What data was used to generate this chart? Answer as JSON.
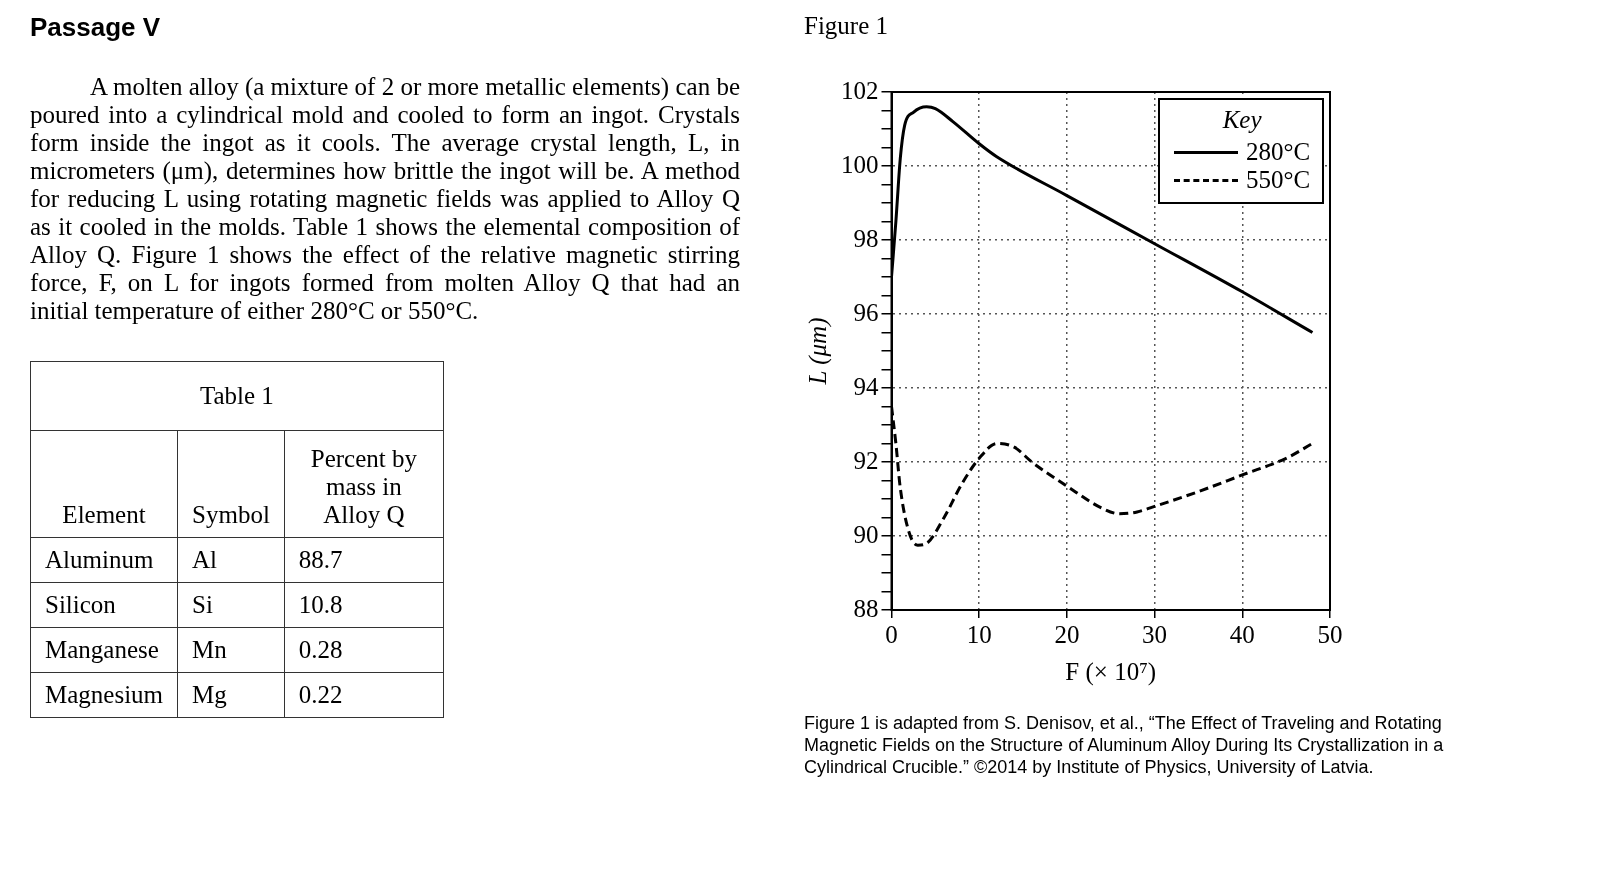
{
  "chart_data": [
    {
      "type": "other",
      "title": "Passage V",
      "annotations": [
        "A molten alloy (a mixture of 2 or more metallic elements) can be poured into a cylindrical mold and cooled to form an ingot. Crystals form inside the ingot as it cools. The average crystal length, L, in micrometers (μm), determines how brittle the ingot will be. A method for reducing L using rotating magnetic fields was applied to Alloy Q as it cooled in the molds. Table 1 shows the elemental composition of Alloy Q. Figure 1 shows the effect of the relative magnetic stirring force, F, on L for ingots formed from molten Alloy Q that had an initial temperature of either 280°C or 550°C.",
        "Table 1",
        "Element",
        "Symbol",
        "Percent by mass in Alloy Q",
        "Aluminum",
        "Al",
        "88.7",
        "Silicon",
        "Si",
        "10.8",
        "Manganese",
        "Mn",
        "0.28",
        "Magnesium",
        "Mg",
        "0.22"
      ]
    },
    {
      "type": "line",
      "title": "Figure 1",
      "xlabel": "F (× 10⁷)",
      "ylabel": "L (μm)",
      "legend_title": "Key",
      "legend": "top right",
      "grid": true,
      "marker": "none",
      "xlim": [
        0,
        50
      ],
      "xticks": [
        0,
        10,
        20,
        30,
        40,
        50
      ],
      "ylim": [
        88,
        102
      ],
      "yticks": [
        88,
        {
          "value": 88.5,
          "label": null
        },
        {
          "value": 89,
          "label": null
        },
        {
          "value": 89.5,
          "label": null
        },
        90,
        {
          "value": 90.5,
          "label": null
        },
        {
          "value": 91,
          "label": null
        },
        {
          "value": 91.5,
          "label": null
        },
        92,
        {
          "value": 92.5,
          "label": null
        },
        {
          "value": 93,
          "label": null
        },
        {
          "value": 93.5,
          "label": null
        },
        94,
        {
          "value": 94.5,
          "label": null
        },
        {
          "value": 95,
          "label": null
        },
        {
          "value": 95.5,
          "label": null
        },
        96,
        {
          "value": 96.5,
          "label": null
        },
        {
          "value": 97,
          "label": null
        },
        {
          "value": 97.5,
          "label": null
        },
        98,
        {
          "value": 98.5,
          "label": null
        },
        {
          "value": 99,
          "label": null
        },
        {
          "value": 99.5,
          "label": null
        },
        100,
        {
          "value": 100.5,
          "label": null
        },
        {
          "value": 101,
          "label": null
        },
        {
          "value": 101.5,
          "label": null
        },
        102
      ],
      "series": [
        {
          "name": "280°C",
          "color": "#000000",
          "line_style": "solid",
          "x": [
            0,
            0.5,
            1,
            1.5,
            2.5,
            4,
            5,
            7,
            10,
            12,
            20,
            30,
            40,
            48
          ],
          "values": [
            97,
            98.5,
            100.2,
            101.1,
            101.45,
            101.6,
            101.55,
            101.2,
            100.6,
            100.25,
            99.2,
            97.9,
            96.6,
            95.5
          ]
        },
        {
          "name": "550°C",
          "color": "#000000",
          "line_style": "dashed",
          "x": [
            0,
            0.5,
            1,
            2,
            3,
            4,
            6,
            8,
            10,
            12,
            14,
            16,
            20,
            24,
            26,
            28,
            30,
            35,
            40,
            45,
            48
          ],
          "values": [
            93.5,
            92.5,
            91.3,
            90.1,
            89.75,
            89.8,
            90.5,
            91.4,
            92.1,
            92.5,
            92.4,
            92,
            91.35,
            90.75,
            90.6,
            90.65,
            90.8,
            91.2,
            91.65,
            92.1,
            92.5
          ]
        }
      ],
      "annotations": [
        "Figure 1 is adapted from S. Denisov, et al., “The Effect of Traveling and Rotating Magnetic Fields on the Structure of Aluminum Alloy During Its Crystallization in a Cylindrical Crucible.” ©2014 by Institute of Physics, University of Latvia."
      ]
    }
  ]
}
